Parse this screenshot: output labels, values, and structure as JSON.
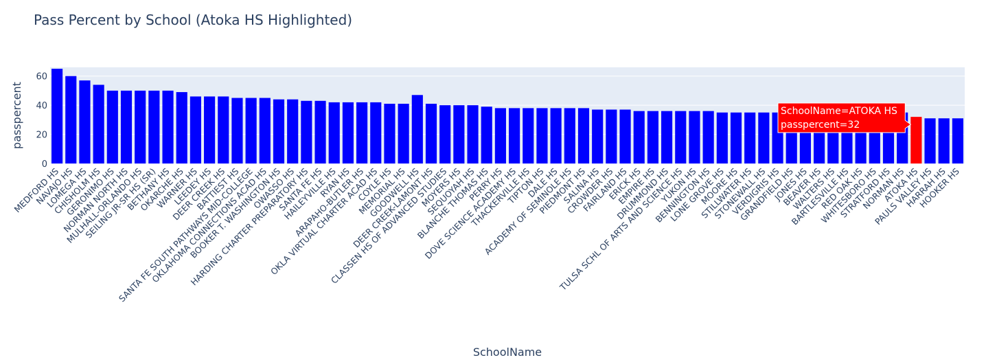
{
  "chart_data": {
    "type": "bar",
    "title": "Pass Percent by School (Atoka HS Highlighted)",
    "xlabel": "SchoolName",
    "ylabel": "passpercent",
    "ylim": [
      0,
      66
    ],
    "yticks": [
      0,
      20,
      40,
      60
    ],
    "grid": true,
    "highlight": "ATOKA HS",
    "colors": {
      "bar": "#0000ff",
      "highlight": "#ff0000",
      "plot_bg": "#e5ecf6",
      "grid": "#ffffff",
      "text": "#2a3f5f"
    },
    "categories": [
      "MEDFORD HS",
      "NAVAJO HS",
      "LOMEGA HS",
      "CHISHOLM HS",
      "GERONIMO HS",
      "NORMAN NORTH HS",
      "MULHALL-ORLANDO HS",
      "SEILING JR-SR HS (SR)",
      "BETHANY HS",
      "OKARCHE HS",
      "WARNER HS",
      "LEEDEY HS",
      "DEER CREEK HS",
      "BATTIEST HS",
      "SANTA FE SOUTH PATHWAYS MID-COLLEGE",
      "OKLAHOMA CONNECTIONS ACAD HS",
      "BOOKER T. WASHINGTON HS",
      "OWASSO HS",
      "HARDING CHARTER PREPARATORY HS",
      "SANTA FE HS",
      "HAILEYVILLE HS",
      "RYAN HS",
      "ARAPAHO-BUTLER HS",
      "OKLA VIRTUAL CHARTER ACAD HS",
      "COYLE HS",
      "MEMORIAL HS",
      "GOODWELL HS",
      "DEER CREEK-LAMONT HS",
      "CLASSEN HS OF ADVANCED STUDIES",
      "MOYERS HS",
      "SEQUOYAH HS",
      "BLANCHE THOMAS HS",
      "PERRY HS",
      "DOVE SCIENCE ACADEMY HS",
      "THACKERVILLE HS",
      "TIPTON HS",
      "DALE HS",
      "ACADEMY OF SEMINOLE HS",
      "PIEDMONT HS",
      "SALINA HS",
      "CROWDER HS",
      "FAIRLAND HS",
      "ERICK HS",
      "EMPIRE HS",
      "DRUMMOND HS",
      "TULSA SCHL OF ARTS AND SCIENCE HS",
      "YUKON HS",
      "BENNINGTON HS",
      "LONE GROVE HS",
      "MOORE HS",
      "STILLWATER HS",
      "STONEWALL HS",
      "VERDIGRIS HS",
      "GRANDFIELD HS",
      "JONES HS",
      "BEAVER HS",
      "WALTERS HS",
      "BARTLESVILLE HS",
      "RED OAK HS",
      "WHITESBORO HS",
      "STRATFORD HS",
      "NORMAN HS",
      "ATOKA HS",
      "PAULS VALLEY HS",
      "HARRAH HS",
      "HOOKER HS"
    ],
    "values": [
      65,
      60,
      57,
      54,
      50,
      50,
      50,
      50,
      50,
      49,
      46,
      46,
      46,
      45,
      45,
      45,
      44,
      44,
      43,
      43,
      42,
      42,
      42,
      42,
      41,
      41,
      47,
      41,
      40,
      40,
      40,
      39,
      38,
      38,
      38,
      38,
      38,
      38,
      38,
      37,
      37,
      37,
      36,
      36,
      36,
      36,
      36,
      36,
      35,
      35,
      35,
      35,
      35,
      35,
      35,
      35,
      35,
      35,
      35,
      35,
      35,
      35,
      32,
      31,
      31,
      31
    ],
    "tooltip": {
      "line1": "SchoolName=ATOKA HS",
      "line2": "passpercent=32"
    }
  }
}
